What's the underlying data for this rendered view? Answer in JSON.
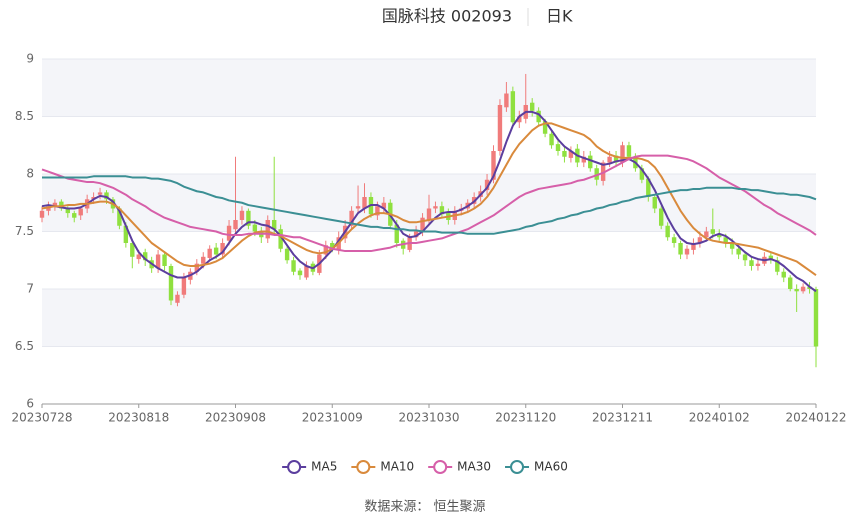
{
  "chart_data": {
    "type": "candlestick",
    "title": "国脉科技 002093",
    "subtitle": "日K",
    "source": "数据来源： 恒生聚源",
    "categories": [
      "20230728",
      null,
      null,
      null,
      null,
      null,
      null,
      null,
      null,
      null,
      null,
      null,
      null,
      null,
      null,
      "20230818",
      null,
      null,
      null,
      null,
      null,
      null,
      null,
      null,
      null,
      null,
      null,
      null,
      null,
      null,
      "20230908",
      null,
      null,
      null,
      null,
      null,
      null,
      null,
      null,
      null,
      null,
      null,
      null,
      null,
      null,
      "20231009",
      null,
      null,
      null,
      null,
      null,
      null,
      null,
      null,
      null,
      null,
      null,
      null,
      null,
      null,
      "20231030",
      null,
      null,
      null,
      null,
      null,
      null,
      null,
      null,
      null,
      null,
      null,
      null,
      null,
      null,
      "20231120",
      null,
      null,
      null,
      null,
      null,
      null,
      null,
      null,
      null,
      null,
      null,
      null,
      null,
      null,
      "20231211",
      null,
      null,
      null,
      null,
      null,
      null,
      null,
      null,
      null,
      null,
      null,
      null,
      null,
      null,
      "20240102",
      null,
      null,
      null,
      null,
      null,
      null,
      null,
      null,
      null,
      null,
      null,
      null,
      null,
      null,
      "20240122"
    ],
    "candles": {
      "up_color": "#f07b7b",
      "down_color": "#8fe03f",
      "open": [
        7.62,
        7.68,
        7.72,
        7.76,
        7.7,
        7.66,
        7.64,
        7.7,
        7.78,
        7.82,
        7.84,
        7.78,
        7.7,
        7.55,
        7.4,
        7.26,
        7.32,
        7.25,
        7.18,
        7.3,
        7.2,
        6.88,
        6.95,
        7.08,
        7.15,
        7.22,
        7.27,
        7.36,
        7.3,
        7.42,
        7.52,
        7.6,
        7.68,
        7.56,
        7.5,
        7.44,
        7.6,
        7.52,
        7.35,
        7.25,
        7.16,
        7.1,
        7.22,
        7.14,
        7.3,
        7.4,
        7.34,
        7.44,
        7.55,
        7.7,
        7.7,
        7.8,
        7.64,
        7.7,
        7.75,
        7.56,
        7.42,
        7.34,
        7.45,
        7.5,
        7.6,
        7.7,
        7.72,
        7.66,
        7.6,
        7.68,
        7.7,
        7.74,
        7.8,
        7.86,
        7.95,
        8.2,
        8.58,
        8.72,
        8.45,
        8.48,
        8.62,
        8.55,
        8.46,
        8.35,
        8.26,
        8.2,
        8.14,
        8.22,
        8.1,
        8.16,
        8.05,
        7.94,
        8.1,
        8.16,
        8.1,
        8.25,
        8.15,
        8.05,
        7.96,
        7.8,
        7.7,
        7.55,
        7.45,
        7.4,
        7.3,
        7.34,
        7.4,
        7.45,
        7.52,
        7.48,
        7.45,
        7.4,
        7.35,
        7.3,
        7.25,
        7.2,
        7.22,
        7.29,
        7.25,
        7.15,
        7.1,
        7.0,
        6.98,
        7.02,
        7.0
      ],
      "close": [
        7.68,
        7.72,
        7.75,
        7.7,
        7.66,
        7.62,
        7.7,
        7.78,
        7.8,
        7.84,
        7.78,
        7.7,
        7.55,
        7.4,
        7.28,
        7.3,
        7.25,
        7.18,
        7.3,
        7.2,
        6.9,
        6.95,
        7.1,
        7.15,
        7.22,
        7.28,
        7.35,
        7.3,
        7.4,
        7.55,
        7.6,
        7.68,
        7.55,
        7.5,
        7.45,
        7.6,
        7.52,
        7.35,
        7.25,
        7.15,
        7.12,
        7.2,
        7.15,
        7.3,
        7.38,
        7.35,
        7.45,
        7.55,
        7.68,
        7.72,
        7.8,
        7.65,
        7.72,
        7.75,
        7.55,
        7.4,
        7.35,
        7.45,
        7.5,
        7.62,
        7.7,
        7.72,
        7.65,
        7.6,
        7.68,
        7.7,
        7.75,
        7.8,
        7.85,
        7.95,
        8.2,
        8.6,
        8.7,
        8.45,
        8.5,
        8.6,
        8.55,
        8.45,
        8.35,
        8.25,
        8.2,
        8.15,
        8.2,
        8.1,
        8.15,
        8.05,
        7.95,
        8.1,
        8.15,
        8.1,
        8.25,
        8.15,
        8.05,
        7.95,
        7.8,
        7.7,
        7.55,
        7.45,
        7.4,
        7.3,
        7.35,
        7.4,
        7.45,
        7.5,
        7.48,
        7.45,
        7.4,
        7.35,
        7.3,
        7.25,
        7.2,
        7.22,
        7.28,
        7.25,
        7.15,
        7.1,
        7.0,
        6.98,
        7.02,
        7.0,
        6.5
      ],
      "high": [
        7.72,
        7.76,
        7.78,
        7.78,
        7.72,
        7.68,
        7.72,
        7.82,
        7.84,
        7.88,
        7.86,
        7.8,
        7.72,
        7.58,
        7.42,
        7.34,
        7.35,
        7.28,
        7.34,
        7.33,
        7.22,
        6.98,
        7.14,
        7.18,
        7.26,
        7.32,
        7.38,
        7.4,
        7.44,
        7.6,
        8.15,
        7.72,
        7.7,
        7.6,
        7.54,
        7.64,
        8.15,
        7.56,
        7.38,
        7.28,
        7.18,
        7.24,
        7.24,
        7.34,
        7.42,
        7.42,
        7.5,
        7.6,
        7.72,
        7.9,
        7.92,
        7.84,
        7.76,
        7.8,
        7.78,
        7.6,
        7.44,
        7.48,
        7.55,
        7.66,
        7.82,
        7.76,
        7.76,
        7.7,
        7.72,
        7.74,
        7.78,
        7.84,
        7.9,
        8.0,
        8.25,
        8.65,
        8.8,
        8.76,
        8.55,
        8.87,
        8.66,
        8.58,
        8.48,
        8.38,
        8.3,
        8.24,
        8.24,
        8.26,
        8.2,
        8.2,
        8.08,
        8.12,
        8.2,
        8.2,
        8.28,
        8.28,
        8.18,
        8.08,
        7.98,
        7.82,
        7.72,
        7.58,
        7.48,
        7.42,
        7.38,
        7.44,
        7.5,
        7.54,
        7.7,
        7.52,
        7.48,
        7.44,
        7.38,
        7.33,
        7.28,
        7.26,
        7.32,
        7.32,
        7.28,
        7.18,
        7.12,
        7.04,
        7.05,
        7.06,
        7.02
      ],
      "low": [
        7.58,
        7.64,
        7.68,
        7.68,
        7.62,
        7.58,
        7.6,
        7.66,
        7.74,
        7.78,
        7.74,
        7.66,
        7.52,
        7.36,
        7.18,
        7.22,
        7.2,
        7.14,
        7.14,
        7.16,
        6.86,
        6.85,
        6.92,
        7.04,
        7.12,
        7.18,
        7.24,
        7.26,
        7.26,
        7.38,
        7.48,
        7.56,
        7.52,
        7.46,
        7.4,
        7.4,
        7.48,
        7.32,
        7.22,
        7.12,
        7.08,
        7.08,
        7.12,
        7.12,
        7.26,
        7.32,
        7.3,
        7.4,
        7.52,
        7.66,
        7.66,
        7.62,
        7.6,
        7.66,
        7.52,
        7.36,
        7.3,
        7.32,
        7.42,
        7.46,
        7.56,
        7.66,
        7.62,
        7.56,
        7.56,
        7.64,
        7.66,
        7.7,
        7.76,
        7.82,
        7.92,
        8.16,
        8.54,
        8.42,
        8.4,
        8.44,
        8.5,
        8.42,
        8.32,
        8.22,
        8.16,
        8.1,
        8.1,
        8.06,
        8.06,
        8.02,
        7.9,
        7.9,
        8.06,
        8.06,
        8.06,
        8.12,
        8.02,
        7.92,
        7.76,
        7.66,
        7.52,
        7.42,
        7.36,
        7.26,
        7.26,
        7.3,
        7.36,
        7.42,
        7.44,
        7.42,
        7.36,
        7.3,
        7.26,
        7.2,
        7.16,
        7.16,
        7.2,
        7.22,
        7.12,
        7.06,
        6.98,
        6.8,
        6.96,
        6.96,
        6.32
      ]
    },
    "series": [
      {
        "name": "MA5",
        "color": "#5b3e9e",
        "values": [
          7.72,
          7.73,
          7.72,
          7.71,
          7.7,
          7.7,
          7.71,
          7.74,
          7.78,
          7.81,
          7.8,
          7.76,
          7.68,
          7.55,
          7.42,
          7.32,
          7.26,
          7.22,
          7.18,
          7.15,
          7.12,
          7.1,
          7.1,
          7.12,
          7.15,
          7.2,
          7.25,
          7.28,
          7.32,
          7.4,
          7.48,
          7.54,
          7.58,
          7.58,
          7.56,
          7.55,
          7.52,
          7.46,
          7.38,
          7.3,
          7.24,
          7.2,
          7.18,
          7.22,
          7.28,
          7.34,
          7.42,
          7.5,
          7.58,
          7.66,
          7.7,
          7.73,
          7.73,
          7.7,
          7.64,
          7.56,
          7.48,
          7.45,
          7.46,
          7.5,
          7.56,
          7.62,
          7.66,
          7.67,
          7.67,
          7.69,
          7.72,
          7.76,
          7.82,
          7.88,
          7.98,
          8.12,
          8.28,
          8.42,
          8.5,
          8.54,
          8.54,
          8.52,
          8.46,
          8.38,
          8.3,
          8.24,
          8.2,
          8.16,
          8.14,
          8.12,
          8.1,
          8.08,
          8.09,
          8.11,
          8.12,
          8.13,
          8.1,
          8.04,
          7.96,
          7.86,
          7.74,
          7.62,
          7.52,
          7.44,
          7.4,
          7.39,
          7.4,
          7.42,
          7.46,
          7.48,
          7.46,
          7.42,
          7.37,
          7.32,
          7.28,
          7.26,
          7.25,
          7.26,
          7.24,
          7.2,
          7.15,
          7.1,
          7.07,
          7.02,
          6.98
        ]
      },
      {
        "name": "MA10",
        "color": "#d98a3c",
        "values": [
          7.7,
          7.71,
          7.72,
          7.72,
          7.73,
          7.73,
          7.74,
          7.74,
          7.75,
          7.76,
          7.76,
          7.74,
          7.7,
          7.64,
          7.58,
          7.52,
          7.46,
          7.4,
          7.36,
          7.32,
          7.28,
          7.24,
          7.21,
          7.2,
          7.2,
          7.21,
          7.22,
          7.24,
          7.27,
          7.32,
          7.37,
          7.42,
          7.46,
          7.49,
          7.5,
          7.5,
          7.48,
          7.46,
          7.43,
          7.4,
          7.37,
          7.34,
          7.32,
          7.31,
          7.32,
          7.35,
          7.4,
          7.46,
          7.52,
          7.57,
          7.61,
          7.64,
          7.66,
          7.66,
          7.65,
          7.63,
          7.6,
          7.58,
          7.58,
          7.59,
          7.6,
          7.61,
          7.62,
          7.63,
          7.64,
          7.65,
          7.67,
          7.7,
          7.74,
          7.8,
          7.88,
          7.98,
          8.08,
          8.18,
          8.26,
          8.32,
          8.38,
          8.42,
          8.44,
          8.44,
          8.42,
          8.4,
          8.38,
          8.36,
          8.34,
          8.3,
          8.24,
          8.2,
          8.17,
          8.15,
          8.14,
          8.14,
          8.14,
          8.13,
          8.11,
          8.06,
          7.98,
          7.88,
          7.78,
          7.68,
          7.6,
          7.53,
          7.48,
          7.44,
          7.42,
          7.41,
          7.4,
          7.4,
          7.39,
          7.38,
          7.37,
          7.36,
          7.34,
          7.32,
          7.3,
          7.28,
          7.26,
          7.24,
          7.2,
          7.16,
          7.12
        ]
      },
      {
        "name": "MA30",
        "color": "#d65fa9",
        "values": [
          8.04,
          8.02,
          8.0,
          7.98,
          7.96,
          7.95,
          7.94,
          7.93,
          7.93,
          7.92,
          7.9,
          7.88,
          7.85,
          7.82,
          7.78,
          7.75,
          7.72,
          7.68,
          7.65,
          7.62,
          7.6,
          7.58,
          7.56,
          7.54,
          7.53,
          7.52,
          7.51,
          7.5,
          7.48,
          7.47,
          7.47,
          7.47,
          7.48,
          7.48,
          7.48,
          7.48,
          7.47,
          7.47,
          7.46,
          7.45,
          7.45,
          7.43,
          7.41,
          7.39,
          7.37,
          7.35,
          7.34,
          7.33,
          7.33,
          7.33,
          7.33,
          7.33,
          7.34,
          7.35,
          7.36,
          7.38,
          7.39,
          7.4,
          7.4,
          7.41,
          7.42,
          7.43,
          7.44,
          7.46,
          7.48,
          7.5,
          7.52,
          7.55,
          7.58,
          7.61,
          7.64,
          7.68,
          7.72,
          7.76,
          7.8,
          7.83,
          7.85,
          7.87,
          7.88,
          7.89,
          7.9,
          7.91,
          7.92,
          7.94,
          7.95,
          7.97,
          7.99,
          8.01,
          8.04,
          8.07,
          8.1,
          8.13,
          8.15,
          8.16,
          8.16,
          8.16,
          8.16,
          8.16,
          8.15,
          8.14,
          8.13,
          8.11,
          8.08,
          8.05,
          8.01,
          7.97,
          7.94,
          7.91,
          7.88,
          7.85,
          7.81,
          7.77,
          7.73,
          7.7,
          7.66,
          7.63,
          7.6,
          7.57,
          7.54,
          7.51,
          7.47
        ]
      },
      {
        "name": "MA60",
        "color": "#3b8f94",
        "values": [
          7.97,
          7.97,
          7.97,
          7.97,
          7.97,
          7.97,
          7.97,
          7.97,
          7.98,
          7.98,
          7.98,
          7.98,
          7.98,
          7.98,
          7.97,
          7.97,
          7.97,
          7.96,
          7.96,
          7.95,
          7.94,
          7.92,
          7.89,
          7.87,
          7.85,
          7.84,
          7.82,
          7.8,
          7.79,
          7.77,
          7.76,
          7.75,
          7.73,
          7.72,
          7.71,
          7.7,
          7.69,
          7.68,
          7.67,
          7.66,
          7.65,
          7.64,
          7.63,
          7.62,
          7.61,
          7.6,
          7.59,
          7.58,
          7.57,
          7.56,
          7.55,
          7.54,
          7.54,
          7.53,
          7.53,
          7.52,
          7.52,
          7.51,
          7.51,
          7.5,
          7.5,
          7.5,
          7.49,
          7.49,
          7.49,
          7.49,
          7.48,
          7.48,
          7.48,
          7.48,
          7.48,
          7.49,
          7.5,
          7.51,
          7.52,
          7.54,
          7.55,
          7.57,
          7.58,
          7.59,
          7.61,
          7.62,
          7.64,
          7.65,
          7.67,
          7.68,
          7.7,
          7.71,
          7.73,
          7.74,
          7.76,
          7.77,
          7.79,
          7.8,
          7.81,
          7.82,
          7.83,
          7.84,
          7.85,
          7.86,
          7.86,
          7.87,
          7.87,
          7.88,
          7.88,
          7.88,
          7.88,
          7.88,
          7.87,
          7.87,
          7.86,
          7.86,
          7.85,
          7.84,
          7.83,
          7.83,
          7.82,
          7.82,
          7.81,
          7.8,
          7.78
        ]
      }
    ],
    "ylim": [
      6,
      9
    ],
    "yticks": [
      6,
      6.5,
      7,
      7.5,
      8,
      8.5,
      9
    ],
    "grid": true,
    "legend": "bottom"
  }
}
